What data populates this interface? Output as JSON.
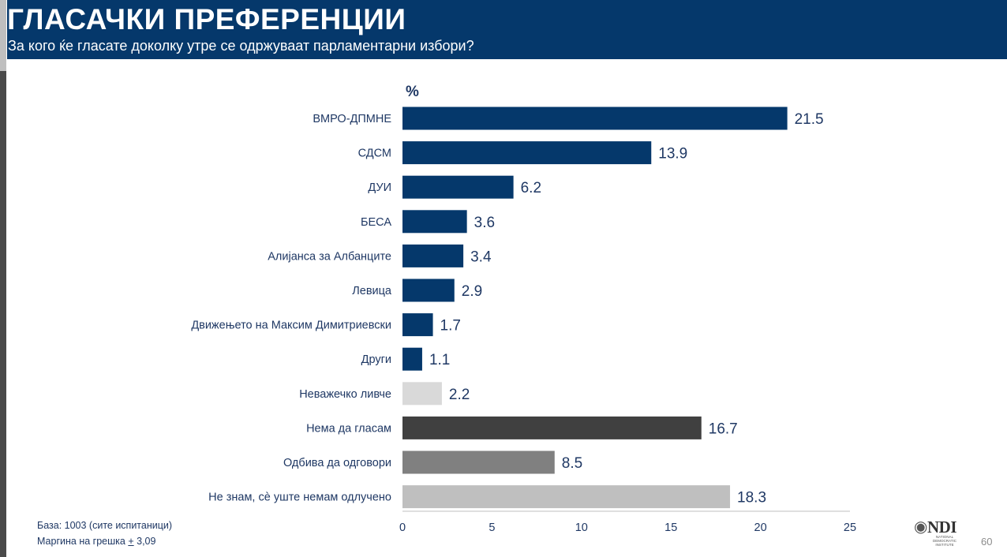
{
  "header": {
    "title": "ГЛАСАЧКИ ПРЕФЕРЕНЦИИ",
    "subtitle": "За кого ќе гласате доколку утре се одржуваат парламентарни избори?"
  },
  "chart_data": {
    "type": "bar",
    "orientation": "horizontal",
    "unit_label": "%",
    "categories": [
      "ВМРО-ДПМНЕ",
      "СДСМ",
      "ДУИ",
      "БЕСА",
      "Алијанса за Албанците",
      "Левица",
      "Движењето на Максим Димитриевски",
      "Други",
      "Неважечко ливче",
      "Нема да гласам ",
      "Одбива да одговори",
      "Не знам, сè уште немам одлучено"
    ],
    "values": [
      21.5,
      13.9,
      6.2,
      3.6,
      3.4,
      2.9,
      1.7,
      1.1,
      2.2,
      16.7,
      8.5,
      18.3
    ],
    "value_labels": [
      "21.5",
      "13.9",
      "6.2",
      "3.6",
      "3.4",
      "2.9",
      "1.7",
      "1.1",
      "2.2",
      "16.7",
      "8.5",
      "18.3"
    ],
    "colors": [
      "#05386b",
      "#05386b",
      "#05386b",
      "#05386b",
      "#05386b",
      "#05386b",
      "#05386b",
      "#05386b",
      "#d9d9d9",
      "#404040",
      "#808080",
      "#bfbfbf"
    ],
    "xlim": [
      0,
      25
    ],
    "xticks": [
      0,
      5,
      10,
      15,
      20,
      25
    ],
    "xlabel": "",
    "ylabel": ""
  },
  "footer": {
    "base": "База: 1003 (сите испитаници)",
    "margin_prefix": "Маргина на грешка ",
    "margin_pm": "+",
    "margin_value": " 3,09",
    "logo_text": "NDI",
    "logo_sub": "NATIONAL DEMOCRATIC INSTITUTE",
    "page_number": "60"
  },
  "colors": {
    "header_bg": "#05386b",
    "value_text": "#1f3864",
    "label_text": "#1f3864"
  }
}
